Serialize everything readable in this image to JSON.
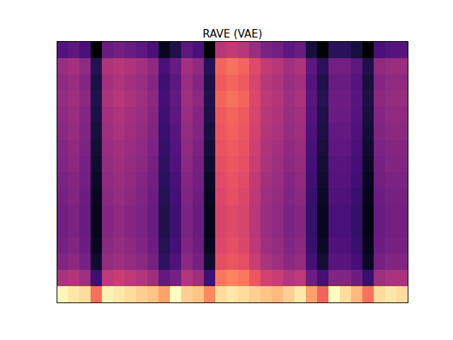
{
  "chart_data": {
    "type": "heatmap",
    "title": "RAVE (VAE)",
    "tick_labels": false,
    "cells": [
      [
        0.26,
        0.28,
        0.24,
        0.05,
        0.3,
        0.32,
        0.3,
        0.28,
        0.24,
        0.1,
        0.16,
        0.28,
        0.24,
        0.05,
        0.46,
        0.48,
        0.46,
        0.4,
        0.34,
        0.32,
        0.28,
        0.3,
        0.14,
        0.06,
        0.18,
        0.18,
        0.14,
        0.05,
        0.24,
        0.26,
        0.26
      ],
      [
        0.4,
        0.42,
        0.38,
        0.17,
        0.44,
        0.46,
        0.44,
        0.42,
        0.38,
        0.24,
        0.3,
        0.42,
        0.38,
        0.17,
        0.6,
        0.62,
        0.6,
        0.54,
        0.48,
        0.46,
        0.42,
        0.44,
        0.28,
        0.18,
        0.32,
        0.32,
        0.28,
        0.16,
        0.38,
        0.4,
        0.4
      ],
      [
        0.38,
        0.4,
        0.36,
        0.15,
        0.42,
        0.44,
        0.42,
        0.4,
        0.36,
        0.22,
        0.28,
        0.4,
        0.36,
        0.15,
        0.58,
        0.6,
        0.58,
        0.52,
        0.46,
        0.44,
        0.4,
        0.42,
        0.26,
        0.16,
        0.3,
        0.3,
        0.26,
        0.14,
        0.36,
        0.38,
        0.38
      ],
      [
        0.39,
        0.41,
        0.37,
        0.16,
        0.43,
        0.46,
        0.43,
        0.41,
        0.37,
        0.23,
        0.29,
        0.41,
        0.37,
        0.16,
        0.6,
        0.62,
        0.6,
        0.53,
        0.47,
        0.45,
        0.41,
        0.43,
        0.27,
        0.17,
        0.31,
        0.31,
        0.27,
        0.15,
        0.37,
        0.39,
        0.39
      ],
      [
        0.38,
        0.4,
        0.36,
        0.15,
        0.42,
        0.44,
        0.42,
        0.4,
        0.36,
        0.22,
        0.28,
        0.4,
        0.36,
        0.15,
        0.58,
        0.6,
        0.58,
        0.52,
        0.46,
        0.44,
        0.4,
        0.42,
        0.26,
        0.16,
        0.3,
        0.3,
        0.26,
        0.14,
        0.36,
        0.38,
        0.38
      ],
      [
        0.37,
        0.39,
        0.35,
        0.14,
        0.41,
        0.43,
        0.41,
        0.39,
        0.35,
        0.21,
        0.27,
        0.39,
        0.35,
        0.14,
        0.57,
        0.59,
        0.57,
        0.51,
        0.45,
        0.43,
        0.39,
        0.41,
        0.25,
        0.15,
        0.29,
        0.29,
        0.25,
        0.13,
        0.35,
        0.37,
        0.37
      ],
      [
        0.36,
        0.38,
        0.34,
        0.13,
        0.4,
        0.42,
        0.4,
        0.38,
        0.34,
        0.2,
        0.26,
        0.38,
        0.34,
        0.13,
        0.56,
        0.58,
        0.56,
        0.5,
        0.44,
        0.42,
        0.38,
        0.4,
        0.24,
        0.14,
        0.28,
        0.28,
        0.24,
        0.12,
        0.34,
        0.36,
        0.36
      ],
      [
        0.35,
        0.37,
        0.33,
        0.12,
        0.39,
        0.41,
        0.39,
        0.37,
        0.33,
        0.19,
        0.25,
        0.37,
        0.33,
        0.12,
        0.55,
        0.57,
        0.55,
        0.49,
        0.43,
        0.41,
        0.37,
        0.39,
        0.23,
        0.13,
        0.27,
        0.27,
        0.23,
        0.11,
        0.33,
        0.35,
        0.35
      ],
      [
        0.34,
        0.36,
        0.32,
        0.11,
        0.38,
        0.4,
        0.38,
        0.36,
        0.32,
        0.18,
        0.24,
        0.36,
        0.32,
        0.11,
        0.54,
        0.56,
        0.54,
        0.48,
        0.42,
        0.4,
        0.36,
        0.38,
        0.22,
        0.12,
        0.26,
        0.26,
        0.22,
        0.1,
        0.32,
        0.34,
        0.34
      ],
      [
        0.33,
        0.35,
        0.31,
        0.1,
        0.37,
        0.39,
        0.37,
        0.35,
        0.31,
        0.17,
        0.23,
        0.35,
        0.31,
        0.1,
        0.53,
        0.55,
        0.53,
        0.47,
        0.41,
        0.39,
        0.35,
        0.37,
        0.21,
        0.11,
        0.25,
        0.25,
        0.21,
        0.09,
        0.31,
        0.33,
        0.33
      ],
      [
        0.32,
        0.34,
        0.3,
        0.09,
        0.36,
        0.38,
        0.36,
        0.34,
        0.3,
        0.16,
        0.22,
        0.34,
        0.3,
        0.09,
        0.52,
        0.54,
        0.52,
        0.46,
        0.4,
        0.38,
        0.34,
        0.36,
        0.2,
        0.1,
        0.24,
        0.24,
        0.2,
        0.08,
        0.3,
        0.32,
        0.32
      ],
      [
        0.32,
        0.34,
        0.3,
        0.09,
        0.36,
        0.38,
        0.36,
        0.34,
        0.3,
        0.16,
        0.22,
        0.34,
        0.3,
        0.09,
        0.52,
        0.54,
        0.52,
        0.46,
        0.4,
        0.38,
        0.34,
        0.36,
        0.2,
        0.1,
        0.24,
        0.24,
        0.2,
        0.08,
        0.3,
        0.32,
        0.32
      ],
      [
        0.33,
        0.35,
        0.31,
        0.1,
        0.37,
        0.39,
        0.37,
        0.35,
        0.31,
        0.17,
        0.23,
        0.35,
        0.31,
        0.1,
        0.53,
        0.55,
        0.53,
        0.47,
        0.41,
        0.39,
        0.35,
        0.37,
        0.21,
        0.11,
        0.25,
        0.25,
        0.21,
        0.09,
        0.31,
        0.33,
        0.33
      ],
      [
        0.35,
        0.37,
        0.33,
        0.12,
        0.39,
        0.41,
        0.39,
        0.37,
        0.33,
        0.19,
        0.25,
        0.37,
        0.33,
        0.12,
        0.55,
        0.57,
        0.55,
        0.49,
        0.43,
        0.41,
        0.37,
        0.39,
        0.23,
        0.13,
        0.27,
        0.27,
        0.23,
        0.11,
        0.33,
        0.35,
        0.35
      ],
      [
        0.43,
        0.45,
        0.41,
        0.22,
        0.47,
        0.49,
        0.47,
        0.45,
        0.41,
        0.29,
        0.33,
        0.45,
        0.41,
        0.22,
        0.63,
        0.65,
        0.63,
        0.57,
        0.51,
        0.49,
        0.45,
        0.47,
        0.31,
        0.23,
        0.35,
        0.35,
        0.31,
        0.21,
        0.41,
        0.43,
        0.43
      ],
      [
        0.85,
        0.82,
        0.8,
        0.62,
        0.84,
        0.82,
        0.8,
        0.78,
        0.76,
        0.7,
        0.86,
        0.78,
        0.76,
        0.66,
        0.8,
        0.82,
        0.8,
        0.78,
        0.76,
        0.74,
        0.78,
        0.82,
        0.7,
        0.6,
        0.86,
        0.8,
        0.74,
        0.62,
        0.8,
        0.82,
        0.8
      ]
    ]
  }
}
